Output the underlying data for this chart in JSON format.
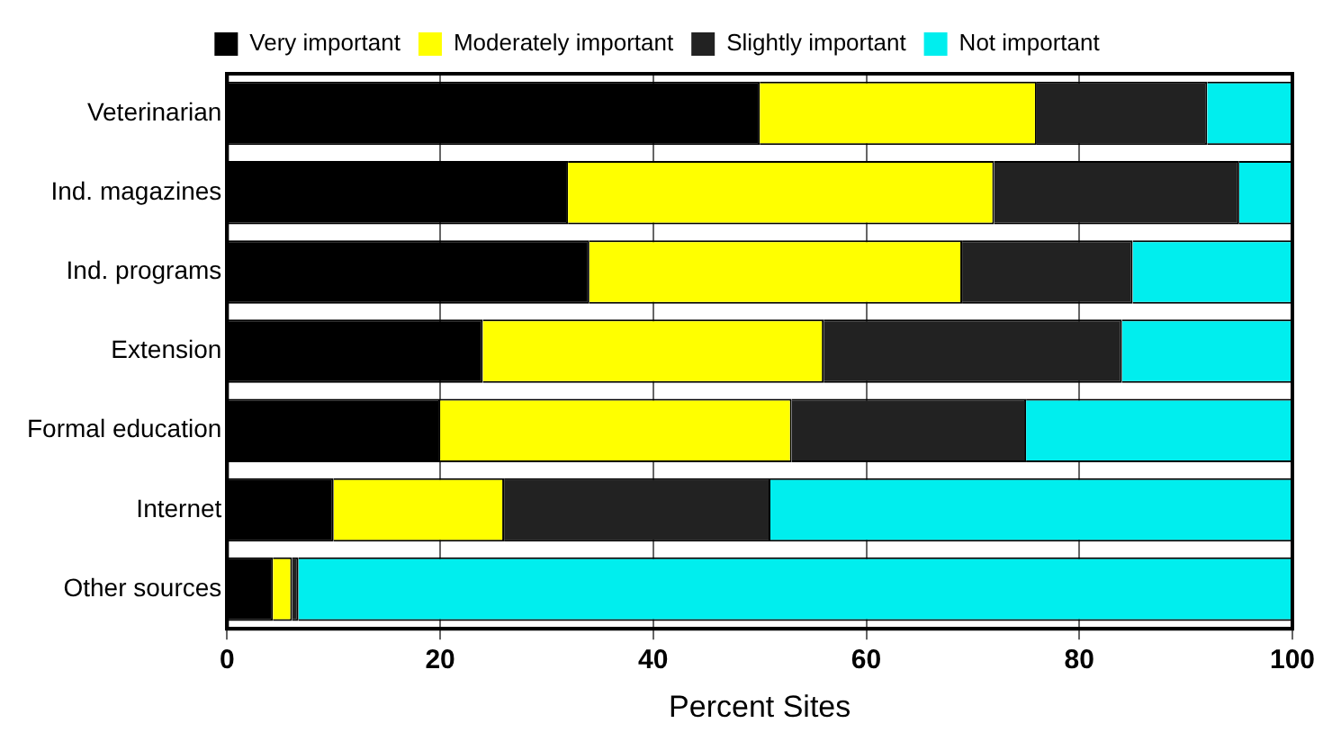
{
  "chart_data": {
    "type": "bar",
    "orientation": "horizontal",
    "stacked": true,
    "xlabel": "Percent Sites",
    "categories": [
      "Veterinarian",
      "Ind. magazines",
      "Ind. programs",
      "Extension",
      "Formal education",
      "Internet",
      "Other sources"
    ],
    "series": [
      {
        "name": "Very important",
        "color": "#000000",
        "values": [
          50,
          32,
          34,
          24,
          20,
          10,
          4.3
        ]
      },
      {
        "name": "Moderately important",
        "color": "#ffff00",
        "values": [
          26,
          40,
          35,
          32,
          33,
          16,
          1.8
        ]
      },
      {
        "name": "Slightly important",
        "color": "#222222",
        "values": [
          16,
          23,
          16,
          28,
          22,
          25,
          0.6
        ]
      },
      {
        "name": "Not important",
        "color": "#00eeee",
        "values": [
          8,
          5,
          15,
          16,
          25,
          49,
          93.3
        ]
      }
    ],
    "xlim": [
      0,
      100
    ],
    "xticks": [
      0,
      20,
      40,
      60,
      80,
      100
    ],
    "grid": "x",
    "legend": "top"
  }
}
